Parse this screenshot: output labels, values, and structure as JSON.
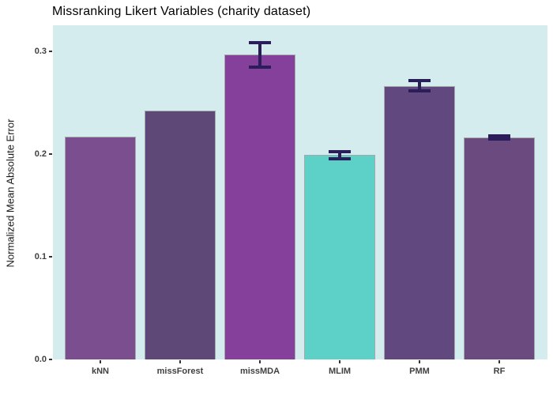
{
  "chart_data": {
    "type": "bar",
    "title": "Missranking Likert Variables (charity dataset)",
    "xlabel": "",
    "ylabel": "Normalized Mean Absolute Error",
    "categories": [
      "kNN",
      "missForest",
      "missMDA",
      "MLIM",
      "PMM",
      "RF"
    ],
    "values": [
      0.217,
      0.242,
      0.297,
      0.199,
      0.266,
      0.216
    ],
    "error_bars": [
      null,
      null,
      {
        "min": 0.283,
        "max": 0.31
      },
      {
        "min": 0.194,
        "max": 0.204
      },
      {
        "min": 0.26,
        "max": 0.273
      },
      {
        "min": 0.213,
        "max": 0.219
      }
    ],
    "bar_colors": [
      "#7B4F8F",
      "#5D4878",
      "#85409B",
      "#5DD0C7",
      "#61497F",
      "#6B4A80"
    ],
    "bar_border_color": "#A3A8A8",
    "errorbar_color": "#2A1E5A",
    "panel_background": "#D5ECEF",
    "yticks": [
      0.0,
      0.1,
      0.2,
      0.3
    ],
    "ytick_labels": [
      "0.0",
      "0.1",
      "0.2",
      "0.3"
    ],
    "ylim": [
      0,
      0.325
    ],
    "grid": false,
    "legend": false
  }
}
